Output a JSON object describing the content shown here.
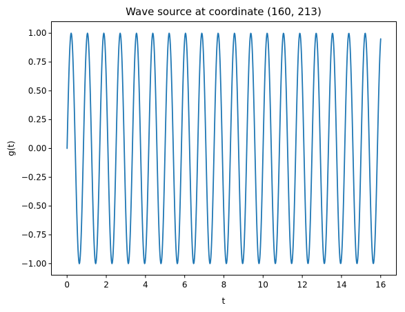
{
  "chart_data": {
    "type": "line",
    "title": "Wave source at coordinate (160, 213)",
    "xlabel": "t",
    "ylabel": "g(t)",
    "xlim": [
      -0.8,
      16.8
    ],
    "ylim": [
      -1.1,
      1.1
    ],
    "x_ticks": [
      0,
      2,
      4,
      6,
      8,
      10,
      12,
      14,
      16
    ],
    "y_ticks": [
      1.0,
      0.75,
      0.5,
      0.25,
      0.0,
      -0.25,
      -0.5,
      -0.75,
      -1.0
    ],
    "x_tick_labels": [
      "0",
      "2",
      "4",
      "6",
      "8",
      "10",
      "12",
      "14",
      "16"
    ],
    "y_tick_labels": [
      "1.00",
      "0.75",
      "0.50",
      "0.25",
      "0.00",
      "−0.25",
      "−0.50",
      "−0.75",
      "−1.00"
    ],
    "grid": false,
    "series": [
      {
        "function": "sin(2*pi*f*t)",
        "frequency": 1.2,
        "t_start": 0,
        "t_end": 16,
        "samples": 1000,
        "color": "#1f77b4"
      }
    ]
  }
}
